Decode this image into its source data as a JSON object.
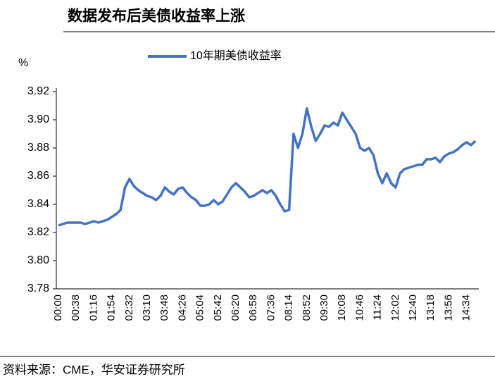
{
  "chart_data": {
    "type": "line",
    "title": "数据发布后美债收益率上涨",
    "y_label": "%",
    "source": "资料来源：CME，华安证券研究所",
    "categories": [
      "00:00",
      null,
      null,
      null,
      "00:38",
      null,
      null,
      null,
      "01:16",
      null,
      null,
      null,
      "01:54",
      null,
      null,
      null,
      "02:32",
      null,
      null,
      null,
      "03:10",
      null,
      null,
      null,
      "03:48",
      null,
      null,
      null,
      "04:26",
      null,
      null,
      null,
      "05:04",
      null,
      null,
      null,
      "05:42",
      null,
      null,
      null,
      "06:20",
      null,
      null,
      null,
      "06:58",
      null,
      null,
      null,
      "07:36",
      null,
      null,
      null,
      "08:14",
      null,
      null,
      null,
      "08:52",
      null,
      null,
      null,
      "09:30",
      null,
      null,
      null,
      "10:08",
      null,
      null,
      null,
      "10:46",
      null,
      null,
      null,
      "11:24",
      null,
      null,
      null,
      "12:02",
      null,
      null,
      null,
      "12:40",
      null,
      null,
      null,
      "13:18",
      null,
      null,
      null,
      "13:56",
      null,
      null,
      null,
      "14:34",
      null,
      null
    ],
    "series": [
      {
        "name": "10年期美债收益率",
        "color": "#4472c4",
        "values": [
          3.825,
          3.826,
          3.827,
          3.827,
          3.827,
          3.827,
          3.826,
          3.827,
          3.828,
          3.827,
          3.828,
          3.829,
          3.831,
          3.833,
          3.836,
          3.852,
          3.858,
          3.853,
          3.85,
          3.848,
          3.846,
          3.845,
          3.843,
          3.846,
          3.852,
          3.849,
          3.847,
          3.851,
          3.852,
          3.848,
          3.845,
          3.843,
          3.839,
          3.839,
          3.84,
          3.843,
          3.84,
          3.842,
          3.847,
          3.852,
          3.855,
          3.852,
          3.849,
          3.845,
          3.846,
          3.848,
          3.85,
          3.848,
          3.85,
          3.846,
          3.84,
          3.835,
          3.836,
          3.89,
          3.88,
          3.89,
          3.908,
          3.895,
          3.885,
          3.89,
          3.896,
          3.895,
          3.898,
          3.896,
          3.905,
          3.9,
          3.895,
          3.89,
          3.88,
          3.878,
          3.88,
          3.875,
          3.862,
          3.855,
          3.862,
          3.855,
          3.852,
          3.862,
          3.865,
          3.866,
          3.867,
          3.868,
          3.868,
          3.872,
          3.872,
          3.873,
          3.87,
          3.874,
          3.876,
          3.877,
          3.879,
          3.882,
          3.884,
          3.882,
          3.885
        ]
      }
    ],
    "ylim": [
      3.78,
      3.92
    ],
    "yticks": [
      3.78,
      {
        "value": 3.8,
        "label": "3.80"
      },
      3.82,
      3.84,
      3.86,
      3.88,
      {
        "value": 3.9,
        "label": "3.90"
      },
      3.92
    ],
    "legend": "top"
  }
}
